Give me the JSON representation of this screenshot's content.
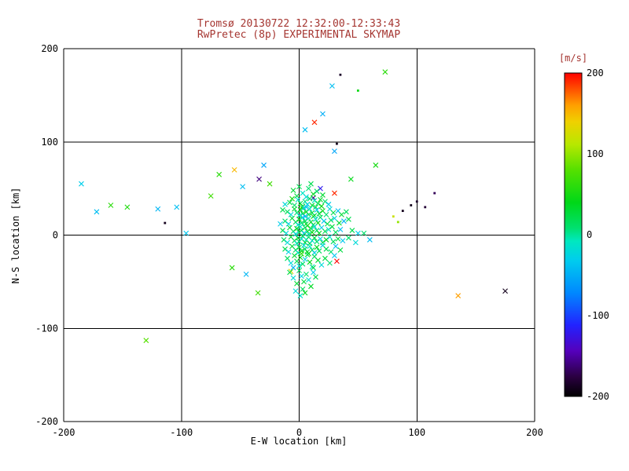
{
  "chart_data": {
    "type": "scatter",
    "title": "Tromsø 20130722 12:32:00-12:33:43",
    "subtitle": "RwPretec (8p) EXPERIMENTAL SKYMAP",
    "xlabel": "E-W location [km]",
    "ylabel": "N-S location [km]",
    "xlim": [
      -200,
      200
    ],
    "ylim": [
      -200,
      200
    ],
    "xticks": [
      -200,
      -100,
      0,
      100,
      200
    ],
    "yticks": [
      -200,
      -100,
      0,
      100,
      200
    ],
    "grid": true,
    "colors": {
      "title": "#a53530",
      "axis": "#000000",
      "background": "#ffffff"
    },
    "colorbar": {
      "label": "[m/s]",
      "ticks": [
        200,
        100,
        0,
        -100,
        -200
      ],
      "vmin": -200,
      "vmax": 200,
      "position": "right",
      "stops": [
        [
          0.0,
          "#000000"
        ],
        [
          0.06,
          "#2a0040"
        ],
        [
          0.14,
          "#5500bb"
        ],
        [
          0.22,
          "#2222ff"
        ],
        [
          0.32,
          "#0088ff"
        ],
        [
          0.42,
          "#00ccee"
        ],
        [
          0.48,
          "#00e8c0"
        ],
        [
          0.52,
          "#00e070"
        ],
        [
          0.6,
          "#00d818"
        ],
        [
          0.7,
          "#55e000"
        ],
        [
          0.78,
          "#b8e800"
        ],
        [
          0.85,
          "#f0d000"
        ],
        [
          0.9,
          "#ffa000"
        ],
        [
          0.95,
          "#ff5000"
        ],
        [
          1.0,
          "#ff0000"
        ]
      ]
    },
    "marker": "x",
    "value_label": "[m/s]",
    "points": [
      [
        -185,
        55,
        -30
      ],
      [
        -172,
        25,
        -40
      ],
      [
        -160,
        32,
        60
      ],
      [
        -146,
        30,
        55
      ],
      [
        -130,
        -113,
        80
      ],
      [
        -120,
        28,
        -45
      ],
      [
        -104,
        30,
        -40
      ],
      [
        -114,
        13,
        -190,
        1
      ],
      [
        -96,
        2,
        -35
      ],
      [
        -75,
        42,
        70
      ],
      [
        -68,
        65,
        60
      ],
      [
        -55,
        70,
        150
      ],
      [
        -48,
        52,
        -40
      ],
      [
        -34,
        60,
        -160
      ],
      [
        -30,
        75,
        -55
      ],
      [
        -25,
        55,
        70
      ],
      [
        -57,
        -35,
        60
      ],
      [
        -45,
        -42,
        -45
      ],
      [
        -35,
        -62,
        70
      ],
      [
        28,
        160,
        -40
      ],
      [
        35,
        172,
        -185,
        1
      ],
      [
        50,
        155,
        45,
        1
      ],
      [
        73,
        175,
        60
      ],
      [
        20,
        130,
        -50
      ],
      [
        13,
        121,
        190
      ],
      [
        5,
        113,
        -40
      ],
      [
        32,
        98,
        -190,
        1
      ],
      [
        30,
        90,
        -55
      ],
      [
        44,
        60,
        40
      ],
      [
        65,
        75,
        50
      ],
      [
        95,
        32,
        -190,
        1
      ],
      [
        100,
        36,
        -185,
        1
      ],
      [
        88,
        26,
        -190,
        1
      ],
      [
        80,
        20,
        120,
        1
      ],
      [
        84,
        14,
        100,
        1
      ],
      [
        115,
        45,
        -170,
        1
      ],
      [
        135,
        -65,
        160
      ],
      [
        175,
        -60,
        -190
      ],
      [
        30,
        45,
        190
      ],
      [
        18,
        50,
        -120
      ],
      [
        12,
        40,
        -160
      ],
      [
        32,
        -28,
        200
      ],
      [
        -7,
        -39,
        130
      ],
      [
        107,
        30,
        -180,
        1
      ],
      [
        -5,
        48,
        30
      ],
      [
        0,
        52,
        20
      ],
      [
        3,
        45,
        -10
      ],
      [
        8,
        50,
        10
      ],
      [
        12,
        44,
        40
      ],
      [
        -2,
        42,
        25
      ],
      [
        6,
        41,
        -20
      ],
      [
        15,
        47,
        15
      ],
      [
        20,
        43,
        30
      ],
      [
        10,
        55,
        20
      ],
      [
        -8,
        35,
        20
      ],
      [
        -4,
        32,
        10
      ],
      [
        -1,
        38,
        -15
      ],
      [
        1,
        34,
        25
      ],
      [
        3,
        31,
        40
      ],
      [
        5,
        36,
        5
      ],
      [
        7,
        33,
        -25
      ],
      [
        9,
        39,
        15
      ],
      [
        11,
        32,
        30
      ],
      [
        13,
        37,
        -10
      ],
      [
        16,
        34,
        20
      ],
      [
        19,
        31,
        45
      ],
      [
        22,
        36,
        10
      ],
      [
        25,
        33,
        -30
      ],
      [
        2,
        30,
        60
      ],
      [
        6,
        30,
        -40
      ],
      [
        14,
        30,
        25
      ],
      [
        18,
        38,
        35
      ],
      [
        -12,
        33,
        -20
      ],
      [
        -6,
        39,
        50
      ],
      [
        -10,
        25,
        15
      ],
      [
        -7,
        22,
        -20
      ],
      [
        -4,
        28,
        30
      ],
      [
        -2,
        24,
        10
      ],
      [
        0,
        21,
        -10
      ],
      [
        1,
        27,
        35
      ],
      [
        3,
        23,
        20
      ],
      [
        4,
        29,
        -25
      ],
      [
        6,
        25,
        45
      ],
      [
        8,
        22,
        15
      ],
      [
        9,
        28,
        -15
      ],
      [
        11,
        24,
        30
      ],
      [
        13,
        21,
        5
      ],
      [
        15,
        27,
        -35
      ],
      [
        17,
        23,
        25
      ],
      [
        20,
        26,
        40
      ],
      [
        23,
        22,
        10
      ],
      [
        26,
        28,
        -20
      ],
      [
        29,
        24,
        20
      ],
      [
        33,
        26,
        -40
      ],
      [
        36,
        22,
        30
      ],
      [
        12,
        20,
        50
      ],
      [
        5,
        20,
        -50
      ],
      [
        -14,
        27,
        20
      ],
      [
        40,
        25,
        15
      ],
      [
        -12,
        15,
        10
      ],
      [
        -9,
        12,
        -25
      ],
      [
        -6,
        18,
        30
      ],
      [
        -3,
        14,
        20
      ],
      [
        -1,
        11,
        -15
      ],
      [
        0,
        17,
        40
      ],
      [
        2,
        13,
        10
      ],
      [
        3,
        19,
        -30
      ],
      [
        5,
        15,
        25
      ],
      [
        6,
        12,
        15
      ],
      [
        8,
        18,
        -10
      ],
      [
        10,
        14,
        35
      ],
      [
        12,
        11,
        20
      ],
      [
        14,
        17,
        -20
      ],
      [
        16,
        13,
        45
      ],
      [
        18,
        19,
        10
      ],
      [
        21,
        15,
        -35
      ],
      [
        24,
        12,
        25
      ],
      [
        27,
        16,
        15
      ],
      [
        30,
        18,
        -25
      ],
      [
        34,
        13,
        30
      ],
      [
        38,
        15,
        -45
      ],
      [
        42,
        17,
        20
      ],
      [
        7,
        10,
        60
      ],
      [
        -16,
        12,
        -30
      ],
      [
        -14,
        5,
        20
      ],
      [
        -11,
        2,
        -20
      ],
      [
        -8,
        8,
        30
      ],
      [
        -5,
        4,
        15
      ],
      [
        -3,
        1,
        -25
      ],
      [
        -2,
        7,
        40
      ],
      [
        0,
        3,
        10
      ],
      [
        1,
        9,
        -15
      ],
      [
        2,
        5,
        25
      ],
      [
        4,
        2,
        -35
      ],
      [
        5,
        8,
        15
      ],
      [
        7,
        4,
        30
      ],
      [
        8,
        1,
        -10
      ],
      [
        10,
        7,
        20
      ],
      [
        11,
        3,
        45
      ],
      [
        13,
        9,
        -20
      ],
      [
        15,
        5,
        10
      ],
      [
        17,
        2,
        35
      ],
      [
        19,
        8,
        -30
      ],
      [
        22,
        4,
        20
      ],
      [
        25,
        6,
        -15
      ],
      [
        28,
        9,
        25
      ],
      [
        31,
        3,
        15
      ],
      [
        35,
        6,
        -40
      ],
      [
        45,
        5,
        20
      ],
      [
        50,
        2,
        -30
      ],
      [
        55,
        2,
        10
      ],
      [
        -13,
        -5,
        15
      ],
      [
        -10,
        -8,
        -20
      ],
      [
        -7,
        -2,
        30
      ],
      [
        -4,
        -6,
        20
      ],
      [
        -2,
        -9,
        -15
      ],
      [
        -1,
        -3,
        35
      ],
      [
        0,
        -7,
        10
      ],
      [
        2,
        -4,
        -25
      ],
      [
        3,
        -1,
        20
      ],
      [
        5,
        -8,
        40
      ],
      [
        6,
        -5,
        -10
      ],
      [
        8,
        -2,
        15
      ],
      [
        9,
        -9,
        30
      ],
      [
        11,
        -6,
        -20
      ],
      [
        13,
        -3,
        25
      ],
      [
        15,
        -7,
        10
      ],
      [
        18,
        -4,
        -30
      ],
      [
        20,
        -8,
        20
      ],
      [
        23,
        -5,
        35
      ],
      [
        26,
        -2,
        -15
      ],
      [
        29,
        -7,
        15
      ],
      [
        33,
        -4,
        25
      ],
      [
        37,
        -6,
        -35
      ],
      [
        42,
        -3,
        10
      ],
      [
        48,
        -8,
        -20
      ],
      [
        60,
        -5,
        -40
      ],
      [
        -12,
        -15,
        20
      ],
      [
        -9,
        -18,
        -25
      ],
      [
        -6,
        -12,
        30
      ],
      [
        -3,
        -16,
        15
      ],
      [
        -1,
        -19,
        -10
      ],
      [
        0,
        -13,
        25
      ],
      [
        2,
        -17,
        40
      ],
      [
        4,
        -11,
        -20
      ],
      [
        5,
        -15,
        10
      ],
      [
        7,
        -18,
        30
      ],
      [
        9,
        -12,
        -15
      ],
      [
        11,
        -16,
        20
      ],
      [
        13,
        -19,
        -30
      ],
      [
        15,
        -13,
        35
      ],
      [
        17,
        -17,
        15
      ],
      [
        20,
        -11,
        -25
      ],
      [
        23,
        -15,
        20
      ],
      [
        27,
        -18,
        10
      ],
      [
        31,
        -12,
        -40
      ],
      [
        35,
        -16,
        25
      ],
      [
        8,
        -20,
        50
      ],
      [
        -10,
        -25,
        15
      ],
      [
        -7,
        -30,
        -20
      ],
      [
        -4,
        -22,
        30
      ],
      [
        -2,
        -28,
        20
      ],
      [
        0,
        -33,
        -15
      ],
      [
        1,
        -24,
        35
      ],
      [
        3,
        -31,
        10
      ],
      [
        5,
        -26,
        -25
      ],
      [
        7,
        -21,
        20
      ],
      [
        9,
        -29,
        40
      ],
      [
        11,
        -34,
        -10
      ],
      [
        13,
        -23,
        15
      ],
      [
        16,
        -27,
        30
      ],
      [
        19,
        -32,
        -20
      ],
      [
        22,
        -25,
        25
      ],
      [
        26,
        -30,
        10
      ],
      [
        30,
        -22,
        -35
      ],
      [
        12,
        -35,
        20
      ],
      [
        -5,
        -35,
        -45
      ],
      [
        2,
        -20,
        60
      ],
      [
        -8,
        -40,
        20
      ],
      [
        -5,
        -46,
        -20
      ],
      [
        -2,
        -52,
        30
      ],
      [
        0,
        -38,
        15
      ],
      [
        2,
        -44,
        -25
      ],
      [
        4,
        -50,
        25
      ],
      [
        6,
        -42,
        10
      ],
      [
        8,
        -48,
        -15
      ],
      [
        10,
        -55,
        35
      ],
      [
        12,
        -40,
        -30
      ],
      [
        14,
        -45,
        20
      ],
      [
        3,
        -58,
        15
      ],
      [
        -3,
        -60,
        -20
      ],
      [
        5,
        -62,
        40
      ],
      [
        1,
        -65,
        -10
      ]
    ]
  }
}
